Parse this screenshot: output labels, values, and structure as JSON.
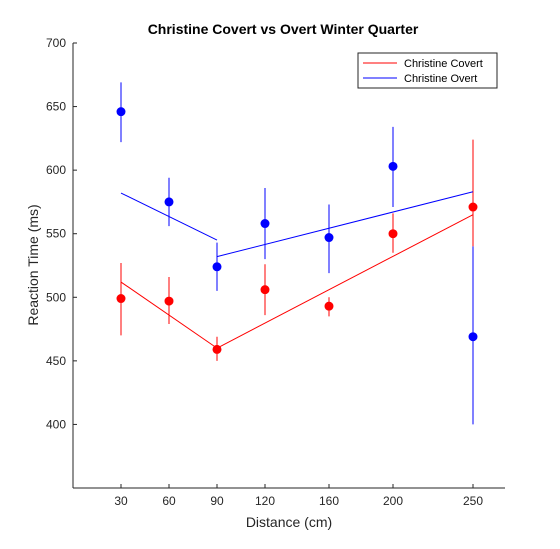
{
  "chart_data": {
    "type": "line",
    "title": "Christine Covert vs Overt Winter Quarter",
    "xlabel": "Distance (cm)",
    "ylabel": "Reaction Time (ms)",
    "x_ticks": [
      30,
      60,
      90,
      120,
      160,
      200,
      250
    ],
    "y_ticks": [
      400,
      450,
      500,
      550,
      600,
      650,
      700
    ],
    "xlim": [
      0,
      270
    ],
    "ylim": [
      350,
      700
    ],
    "grid": false,
    "legend_position": "top-right",
    "series": [
      {
        "name": "Christine Covert",
        "color": "#ff0000",
        "x": [
          30,
          60,
          90,
          120,
          160,
          200,
          250
        ],
        "y": [
          499,
          497,
          459,
          506,
          493,
          550,
          571
        ],
        "err_low": [
          470,
          479,
          450,
          486,
          485,
          535,
          540
        ],
        "err_high": [
          527,
          516,
          469,
          526,
          500,
          566,
          624
        ],
        "fit_segments": [
          {
            "x": [
              30,
              90
            ],
            "y": [
              512,
              460
            ]
          },
          {
            "x": [
              90,
              250
            ],
            "y": [
              460,
              565
            ]
          }
        ]
      },
      {
        "name": "Christine Overt",
        "color": "#0000ff",
        "x": [
          30,
          60,
          90,
          120,
          160,
          200,
          250
        ],
        "y": [
          646,
          575,
          524,
          558,
          547,
          603,
          469
        ],
        "err_low": [
          622,
          556,
          505,
          530,
          519,
          571,
          400
        ],
        "err_high": [
          669,
          594,
          543,
          586,
          573,
          634,
          540
        ],
        "fit_segments": [
          {
            "x": [
              30,
              90
            ],
            "y": [
              582,
              545
            ]
          },
          {
            "x": [
              90,
              250
            ],
            "y": [
              532,
              583
            ]
          }
        ]
      }
    ]
  }
}
